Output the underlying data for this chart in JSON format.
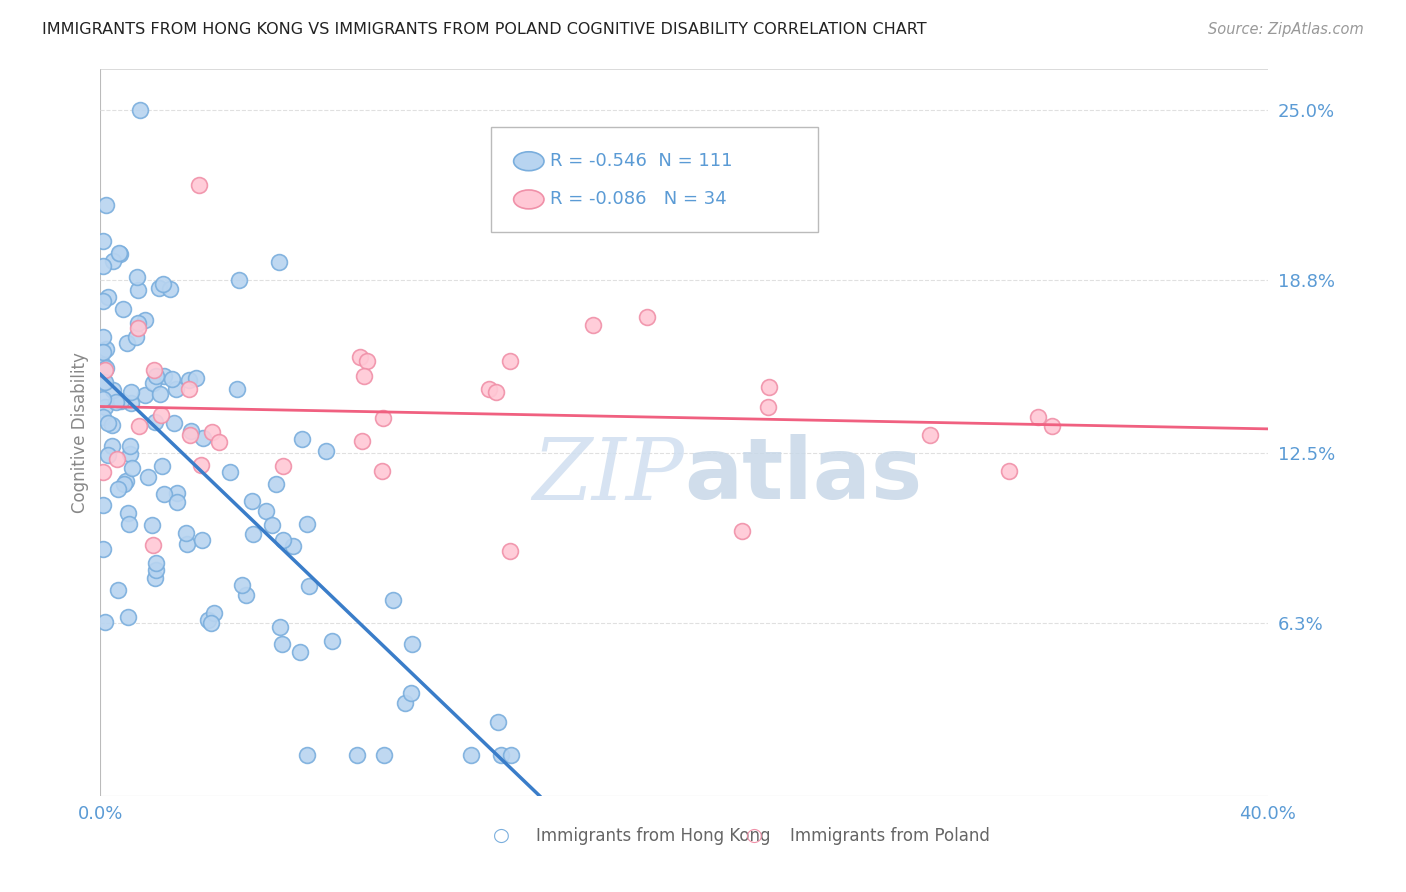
{
  "title": "IMMIGRANTS FROM HONG KONG VS IMMIGRANTS FROM POLAND COGNITIVE DISABILITY CORRELATION CHART",
  "source": "Source: ZipAtlas.com",
  "ylabel": "Cognitive Disability",
  "series1_name": "Immigrants from Hong Kong",
  "series1_R": "-0.546",
  "series1_N": "111",
  "series1_color": "#b8d4f0",
  "series1_edge_color": "#7aaedd",
  "series1_line_color": "#3a7dc9",
  "series2_name": "Immigrants from Poland",
  "series2_R": "-0.086",
  "series2_N": "34",
  "series2_color": "#ffc8d5",
  "series2_edge_color": "#f090a8",
  "series2_line_color": "#f06080",
  "watermark_color": "#d0dff0",
  "background_color": "#ffffff",
  "grid_color": "#e0e0e0",
  "title_color": "#222222",
  "axis_label_color": "#5b9bd5",
  "right_ytick_values": [
    0.063,
    0.125,
    0.188,
    0.25
  ],
  "right_ytick_labels": [
    "6.3%",
    "12.5%",
    "18.8%",
    "25.0%"
  ],
  "xlim": [
    0.0,
    0.4
  ],
  "ylim": [
    0.0,
    0.265
  ]
}
